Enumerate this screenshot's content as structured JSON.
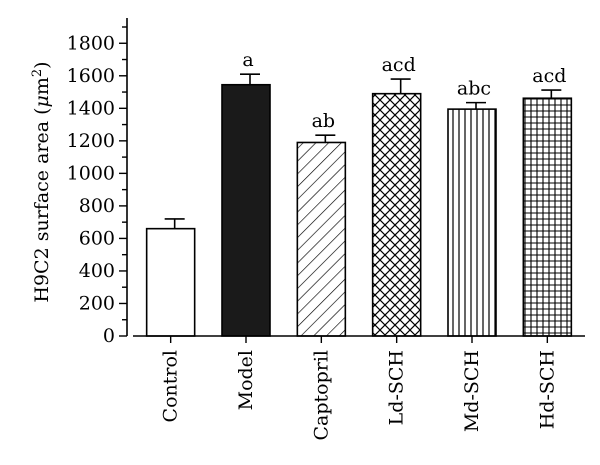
{
  "chart_data": {
    "type": "bar",
    "title": "",
    "xlabel": "",
    "ylabel_parts": [
      "H9C2 surface area (",
      "μ",
      "m",
      "2",
      ")"
    ],
    "ylim": [
      0,
      1900
    ],
    "yticks": [
      0,
      200,
      400,
      600,
      800,
      1000,
      1200,
      1400,
      1600,
      1800
    ],
    "ytick_labels": [
      "0",
      "200",
      "400",
      "600",
      "800",
      "1000",
      "1200",
      "1400",
      "1600",
      "1800"
    ],
    "categories": [
      "Control",
      "Model",
      "Captopril",
      "Ld-SCH",
      "Md-SCH",
      "Hd-SCH"
    ],
    "values": [
      660,
      1545,
      1190,
      1490,
      1395,
      1462
    ],
    "errors": [
      60,
      65,
      45,
      90,
      40,
      50
    ],
    "annotations": [
      "",
      "a",
      "ab",
      "acd",
      "abc",
      "acd"
    ],
    "fills": [
      "white",
      "solid-black",
      "diagonal-hatch",
      "crosshatch",
      "vertical-lines",
      "grid"
    ],
    "colors": {
      "ink": "#000000",
      "background": "#ffffff"
    },
    "grid": false,
    "legend": "none"
  }
}
